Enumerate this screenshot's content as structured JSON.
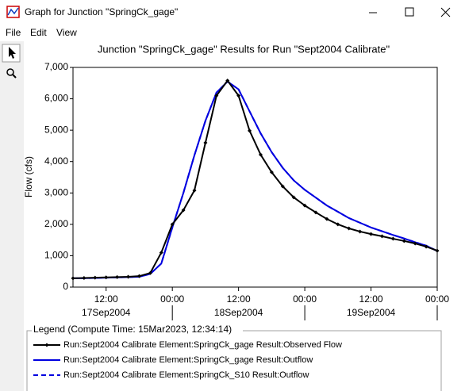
{
  "window": {
    "title": "Graph for Junction \"SpringCk_gage\""
  },
  "menu": [
    "File",
    "Edit",
    "View"
  ],
  "chart_data": {
    "type": "line",
    "title": "Junction \"SpringCk_gage\" Results for Run \"Sept2004 Calibrate\"",
    "y_label": "Flow (cfs)",
    "x": [
      "2004-09-17T06:00",
      "2004-09-17T08:00",
      "2004-09-17T10:00",
      "2004-09-17T12:00",
      "2004-09-17T14:00",
      "2004-09-17T16:00",
      "2004-09-17T18:00",
      "2004-09-17T20:00",
      "2004-09-17T22:00",
      "2004-09-18T00:00",
      "2004-09-18T02:00",
      "2004-09-18T04:00",
      "2004-09-18T06:00",
      "2004-09-18T08:00",
      "2004-09-18T10:00",
      "2004-09-18T12:00",
      "2004-09-18T14:00",
      "2004-09-18T16:00",
      "2004-09-18T18:00",
      "2004-09-18T20:00",
      "2004-09-18T22:00",
      "2004-09-19T00:00",
      "2004-09-19T02:00",
      "2004-09-19T04:00",
      "2004-09-19T06:00",
      "2004-09-19T08:00",
      "2004-09-19T10:00",
      "2004-09-19T12:00",
      "2004-09-19T14:00",
      "2004-09-19T16:00",
      "2004-09-19T18:00",
      "2004-09-19T20:00",
      "2004-09-19T22:00",
      "2004-09-20T00:00"
    ],
    "series": [
      {
        "name": "Run:Sept2004 Calibrate Element:SpringCk_gage Result:Observed Flow",
        "color": "#000000",
        "line_style": "solid",
        "markers": true,
        "values": [
          280,
          290,
          300,
          310,
          320,
          330,
          350,
          450,
          1100,
          2000,
          2450,
          3080,
          4600,
          6100,
          6580,
          6100,
          4980,
          4220,
          3660,
          3210,
          2860,
          2600,
          2380,
          2170,
          2000,
          1870,
          1770,
          1690,
          1620,
          1540,
          1470,
          1390,
          1290,
          1160
        ]
      },
      {
        "name": "Run:Sept2004 Calibrate Element:SpringCk_gage Result:Outflow",
        "color": "#0000e0",
        "line_style": "solid",
        "markers": false,
        "values": [
          280,
          285,
          290,
          300,
          310,
          320,
          330,
          420,
          750,
          1900,
          3000,
          4200,
          5300,
          6200,
          6550,
          6300,
          5600,
          4900,
          4300,
          3800,
          3400,
          3100,
          2850,
          2600,
          2400,
          2200,
          2050,
          1900,
          1780,
          1660,
          1550,
          1430,
          1320,
          1150
        ]
      },
      {
        "name": "Run:Sept2004 Calibrate Element:SpringCk_S10 Result:Outflow",
        "color": "#0000e0",
        "line_style": "dashed",
        "markers": false,
        "values": [
          280,
          285,
          290,
          300,
          310,
          320,
          330,
          420,
          750,
          1900,
          3000,
          4200,
          5300,
          6200,
          6550,
          6300,
          5600,
          4900,
          4300,
          3800,
          3400,
          3100,
          2850,
          2600,
          2400,
          2200,
          2050,
          1900,
          1780,
          1660,
          1550,
          1430,
          1320,
          1150
        ]
      }
    ],
    "xlim": [
      "2004-09-17T06:00",
      "2004-09-20T00:00"
    ],
    "xticks": [
      {
        "value": "2004-09-17T12:00",
        "label": "12:00"
      },
      {
        "value": "2004-09-18T00:00",
        "label": "00:00"
      },
      {
        "value": "2004-09-18T12:00",
        "label": "12:00"
      },
      {
        "value": "2004-09-19T00:00",
        "label": "00:00"
      },
      {
        "value": "2004-09-19T12:00",
        "label": "12:00"
      },
      {
        "value": "2004-09-20T00:00",
        "label": "00:00"
      }
    ],
    "x_date_ticks": [
      {
        "value": "2004-09-17T12:00",
        "label": "17Sep2004"
      },
      {
        "value": "2004-09-18T12:00",
        "label": "18Sep2004"
      },
      {
        "value": "2004-09-19T12:00",
        "label": "19Sep2004"
      }
    ],
    "ylim": [
      0,
      7000
    ],
    "yticks": [
      0,
      {
        "value": 1000,
        "label": "1,000"
      },
      {
        "value": 2000,
        "label": "2,000"
      },
      {
        "value": 3000,
        "label": "3,000"
      },
      {
        "value": 4000,
        "label": "4,000"
      },
      {
        "value": 5000,
        "label": "5,000"
      },
      {
        "value": 6000,
        "label": "6,000"
      },
      {
        "value": 7000,
        "label": "7,000"
      }
    ],
    "grid": false,
    "legend_title": "Legend (Compute Time: 15Mar2023, 12:34:14)"
  }
}
